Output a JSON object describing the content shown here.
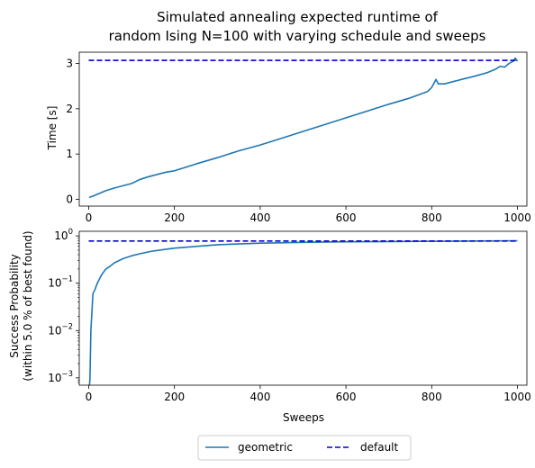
{
  "figure": {
    "title_line1": "Simulated annealing expected runtime of",
    "title_line2": "random Ising N=100 with varying schedule and sweeps"
  },
  "colors": {
    "geometric": "#1f77b4",
    "default": "#0000cc"
  },
  "chart_data": [
    {
      "type": "line",
      "ylabel": "Time [s]",
      "xlim": [
        -22,
        1022
      ],
      "ylim": [
        -0.15,
        3.25
      ],
      "x_ticks": [
        0,
        200,
        400,
        600,
        800,
        1000
      ],
      "y_ticks": [
        0,
        1,
        2,
        3
      ],
      "yscale": "linear",
      "series": [
        {
          "name": "geometric",
          "style": "solid",
          "x": [
            1,
            10,
            20,
            40,
            60,
            80,
            100,
            120,
            140,
            160,
            180,
            200,
            250,
            300,
            350,
            400,
            450,
            500,
            550,
            600,
            650,
            700,
            750,
            790,
            800,
            810,
            815,
            830,
            850,
            870,
            900,
            930,
            950,
            960,
            970,
            980,
            990,
            995,
            1000
          ],
          "y": [
            0.04,
            0.07,
            0.11,
            0.19,
            0.25,
            0.3,
            0.35,
            0.44,
            0.5,
            0.55,
            0.6,
            0.63,
            0.78,
            0.92,
            1.07,
            1.2,
            1.35,
            1.5,
            1.65,
            1.8,
            1.95,
            2.1,
            2.24,
            2.38,
            2.47,
            2.65,
            2.55,
            2.55,
            2.6,
            2.65,
            2.72,
            2.8,
            2.88,
            2.94,
            2.92,
            3.0,
            3.05,
            3.12,
            3.05
          ]
        },
        {
          "name": "default",
          "style": "dashed",
          "x": [
            0,
            1000
          ],
          "y": [
            3.07,
            3.07
          ]
        }
      ]
    },
    {
      "type": "line",
      "xlabel": "Sweeps",
      "ylabel_line1": "Success Probability",
      "ylabel_line2": "(within 5.0 % of best found)",
      "xlim": [
        -22,
        1022
      ],
      "ylim": [
        0.0007,
        1.25
      ],
      "yscale": "log",
      "x_ticks": [
        0,
        200,
        400,
        600,
        800,
        1000
      ],
      "y_ticks": [
        0.001,
        0.01,
        0.1,
        1
      ],
      "y_tick_labels": [
        {
          "base": "10",
          "exp": "−3"
        },
        {
          "base": "10",
          "exp": "−2"
        },
        {
          "base": "10",
          "exp": "−1"
        },
        {
          "base": "10",
          "exp": "0"
        }
      ],
      "series": [
        {
          "name": "geometric",
          "style": "solid",
          "x": [
            1,
            3,
            5,
            8,
            10,
            15,
            20,
            30,
            40,
            50,
            60,
            80,
            100,
            120,
            150,
            200,
            250,
            300,
            400,
            500,
            600,
            700,
            800,
            900,
            1000
          ],
          "y": [
            0.0005,
            0.001,
            0.01,
            0.03,
            0.06,
            0.075,
            0.1,
            0.15,
            0.2,
            0.23,
            0.27,
            0.33,
            0.38,
            0.42,
            0.48,
            0.55,
            0.6,
            0.65,
            0.7,
            0.73,
            0.75,
            0.76,
            0.77,
            0.78,
            0.79
          ]
        },
        {
          "name": "default",
          "style": "dashed",
          "x": [
            0,
            1000
          ],
          "y": [
            0.78,
            0.78
          ]
        }
      ]
    }
  ],
  "legend": {
    "position": "bottom-center",
    "entries": [
      "geometric",
      "default"
    ]
  }
}
